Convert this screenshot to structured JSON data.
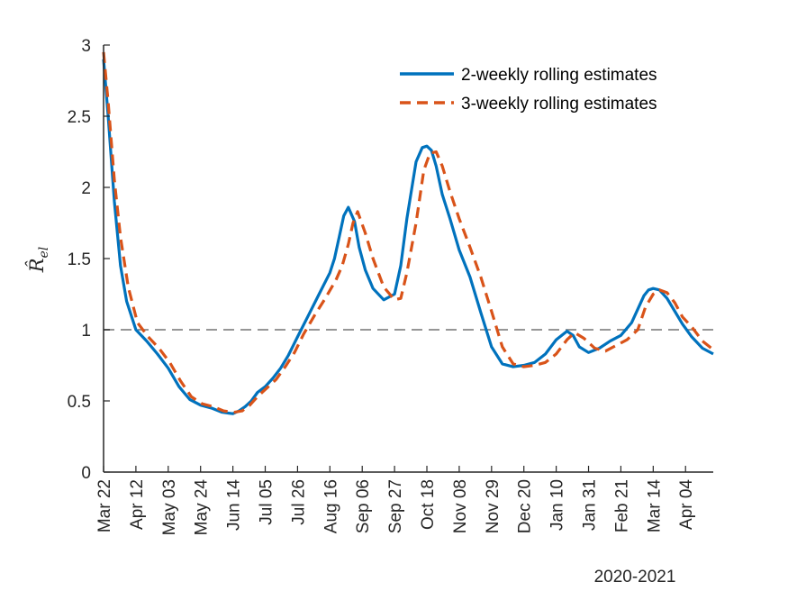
{
  "chart_data": {
    "type": "line",
    "title": "",
    "xlabel": "2020-2021",
    "ylabel": "R̂",
    "ylabel_subscript": "el",
    "ylim": [
      0,
      3
    ],
    "yticks": [
      0,
      0.5,
      1,
      1.5,
      2,
      2.5,
      3
    ],
    "ytick_labels": [
      "0",
      "0.5",
      "1",
      "1.5",
      "2",
      "2.5",
      "3"
    ],
    "xlim_days": [
      0,
      396
    ],
    "xticks_days": [
      0,
      21,
      42,
      63,
      84,
      105,
      126,
      147,
      168,
      189,
      210,
      231,
      252,
      273,
      294,
      315,
      336,
      357,
      378
    ],
    "xtick_labels": [
      "Mar 22",
      "Apr 12",
      "May 03",
      "May 24",
      "Jun 14",
      "Jul 05",
      "Jul 26",
      "Aug 16",
      "Sep 06",
      "Sep 27",
      "Oct 18",
      "Nov 08",
      "Nov 29",
      "Dec 20",
      "Jan 10",
      "Jan 31",
      "Feb 21",
      "Mar 14",
      "Apr 04"
    ],
    "reference_line": {
      "y": 1,
      "color": "#969696",
      "style": "dashed"
    },
    "legend_position": "top-right",
    "series": [
      {
        "name": "2-weekly rolling estimates",
        "color": "#0072BD",
        "style": "solid",
        "x": [
          0,
          3,
          7,
          11,
          15,
          21,
          28,
          35,
          42,
          49,
          56,
          63,
          70,
          77,
          84,
          88,
          92,
          96,
          100,
          105,
          110,
          115,
          120,
          126,
          133,
          140,
          147,
          150,
          153,
          156,
          159,
          163,
          166,
          170,
          175,
          182,
          189,
          193,
          197,
          203,
          207,
          210,
          213,
          216,
          220,
          225,
          231,
          238,
          245,
          252,
          259,
          266,
          273,
          280,
          287,
          294,
          301,
          305,
          309,
          315,
          322,
          329,
          336,
          343,
          351,
          354,
          357,
          361,
          366,
          371,
          376,
          382,
          389,
          396
        ],
        "y": [
          2.9,
          2.5,
          1.9,
          1.45,
          1.2,
          1.0,
          0.92,
          0.83,
          0.73,
          0.6,
          0.51,
          0.47,
          0.45,
          0.42,
          0.41,
          0.43,
          0.46,
          0.5,
          0.56,
          0.6,
          0.66,
          0.73,
          0.82,
          0.95,
          1.1,
          1.25,
          1.4,
          1.5,
          1.65,
          1.8,
          1.86,
          1.76,
          1.58,
          1.42,
          1.29,
          1.21,
          1.25,
          1.45,
          1.78,
          2.18,
          2.28,
          2.29,
          2.26,
          2.15,
          1.95,
          1.78,
          1.56,
          1.37,
          1.12,
          0.88,
          0.76,
          0.74,
          0.75,
          0.77,
          0.83,
          0.93,
          0.99,
          0.96,
          0.88,
          0.84,
          0.87,
          0.92,
          0.96,
          1.05,
          1.24,
          1.28,
          1.29,
          1.28,
          1.22,
          1.13,
          1.04,
          0.95,
          0.87,
          0.83
        ]
      },
      {
        "name": "3-weekly rolling estimates",
        "color": "#D95319",
        "style": "dashed",
        "x": [
          0,
          3,
          7,
          11,
          16,
          22,
          29,
          36,
          43,
          50,
          57,
          64,
          71,
          78,
          85,
          90,
          95,
          100,
          106,
          112,
          118,
          124,
          130,
          137,
          144,
          151,
          155,
          159,
          162,
          165,
          170,
          175,
          182,
          189,
          193,
          197,
          203,
          208,
          212,
          216,
          220,
          225,
          231,
          238,
          245,
          252,
          259,
          266,
          273,
          280,
          287,
          294,
          301,
          306,
          312,
          319,
          326,
          333,
          340,
          347,
          352,
          357,
          361,
          366,
          371,
          376,
          382,
          389,
          396
        ],
        "y": [
          2.95,
          2.6,
          2.05,
          1.65,
          1.3,
          1.05,
          0.95,
          0.87,
          0.77,
          0.64,
          0.53,
          0.48,
          0.46,
          0.43,
          0.42,
          0.43,
          0.47,
          0.53,
          0.59,
          0.65,
          0.74,
          0.84,
          0.97,
          1.1,
          1.22,
          1.35,
          1.45,
          1.6,
          1.75,
          1.83,
          1.68,
          1.5,
          1.3,
          1.21,
          1.22,
          1.4,
          1.75,
          2.12,
          2.24,
          2.25,
          2.15,
          1.97,
          1.78,
          1.58,
          1.37,
          1.13,
          0.88,
          0.76,
          0.74,
          0.75,
          0.77,
          0.83,
          0.93,
          0.98,
          0.94,
          0.87,
          0.85,
          0.89,
          0.93,
          1.0,
          1.16,
          1.25,
          1.28,
          1.26,
          1.19,
          1.09,
          1.02,
          0.92,
          0.86
        ]
      }
    ]
  }
}
